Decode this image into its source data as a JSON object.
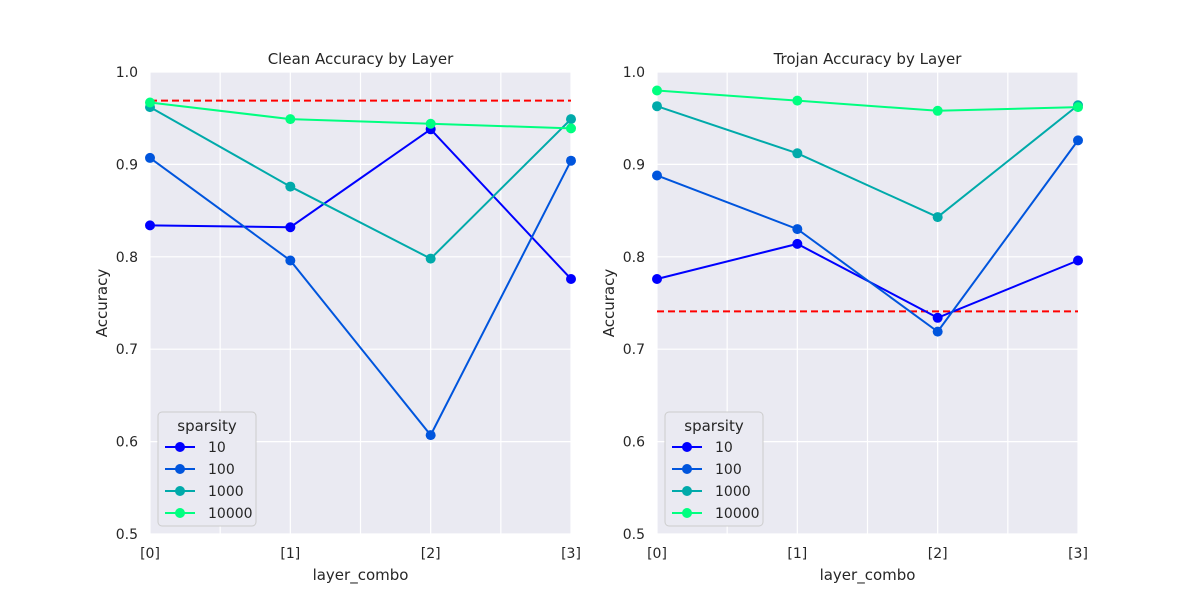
{
  "chart_data": [
    {
      "type": "line",
      "title": "Clean Accuracy by Layer",
      "xlabel": "layer_combo",
      "ylabel": "Accuracy",
      "categories": [
        "[0]",
        "[1]",
        "[2]",
        "[3]"
      ],
      "ylim": [
        0.5,
        1.0
      ],
      "yticks": [
        "0.5",
        "0.6",
        "0.7",
        "0.8",
        "0.9",
        "1.0"
      ],
      "grid": true,
      "reference_line": {
        "y": 0.969,
        "color": "#ff0000",
        "style": "dashed"
      },
      "legend": {
        "title": "sparsity",
        "placement": "lower-left"
      },
      "series": [
        {
          "name": "10",
          "color": "#0000ff",
          "values": [
            0.834,
            0.832,
            0.938,
            0.776
          ]
        },
        {
          "name": "100",
          "color": "#0055dd",
          "values": [
            0.907,
            0.796,
            0.607,
            0.904
          ]
        },
        {
          "name": "1000",
          "color": "#00aaaa",
          "values": [
            0.962,
            0.876,
            0.798,
            0.949
          ]
        },
        {
          "name": "10000",
          "color": "#00ff80",
          "values": [
            0.967,
            0.949,
            0.944,
            0.939
          ]
        }
      ]
    },
    {
      "type": "line",
      "title": "Trojan Accuracy by Layer",
      "xlabel": "layer_combo",
      "ylabel": "Accuracy",
      "categories": [
        "[0]",
        "[1]",
        "[2]",
        "[3]"
      ],
      "ylim": [
        0.5,
        1.0
      ],
      "yticks": [
        "0.5",
        "0.6",
        "0.7",
        "0.8",
        "0.9",
        "1.0"
      ],
      "grid": true,
      "reference_line": {
        "y": 0.741,
        "color": "#ff0000",
        "style": "dashed"
      },
      "legend": {
        "title": "sparsity",
        "placement": "lower-left"
      },
      "series": [
        {
          "name": "10",
          "color": "#0000ff",
          "values": [
            0.776,
            0.814,
            0.734,
            0.796
          ]
        },
        {
          "name": "100",
          "color": "#0055dd",
          "values": [
            0.888,
            0.83,
            0.719,
            0.926
          ]
        },
        {
          "name": "1000",
          "color": "#00aaaa",
          "values": [
            0.963,
            0.912,
            0.843,
            0.964
          ]
        },
        {
          "name": "10000",
          "color": "#00ff80",
          "values": [
            0.98,
            0.969,
            0.958,
            0.962
          ]
        }
      ]
    }
  ]
}
